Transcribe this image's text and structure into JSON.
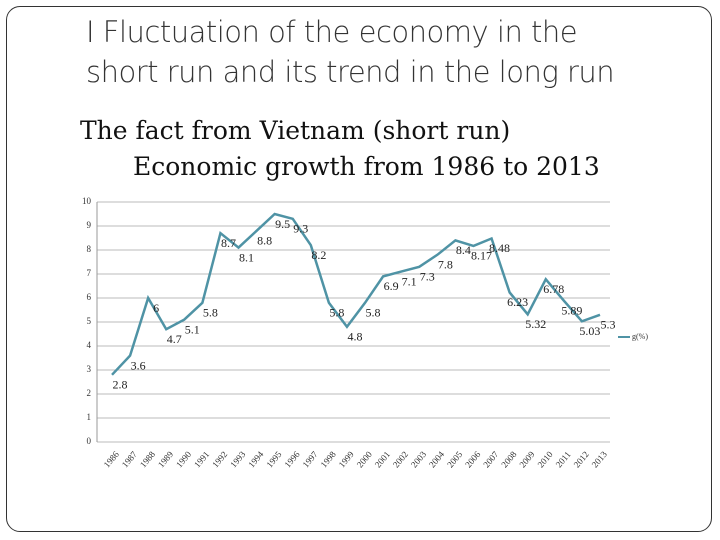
{
  "chart_data": {
    "type": "line",
    "title": "I Fluctuation of the economy in the short run and its trend in the long run",
    "subtitle": "The fact from Vietnam (short run)",
    "subtitle2": "Economic growth from 1986 to 2013",
    "categories": [
      "1986",
      "1987",
      "1988",
      "1989",
      "1990",
      "1991",
      "1992",
      "1993",
      "1994",
      "1995",
      "1996",
      "1997",
      "1998",
      "1999",
      "2000",
      "2001",
      "2002",
      "2003",
      "2004",
      "2005",
      "2006",
      "2007",
      "2008",
      "2009",
      "2010",
      "2011",
      "2012",
      "2013"
    ],
    "series": [
      {
        "name": "g(%)",
        "color": "#4f93a5",
        "values": [
          2.8,
          3.6,
          6,
          4.7,
          5.1,
          5.8,
          8.7,
          8.1,
          8.8,
          9.5,
          9.3,
          8.2,
          5.8,
          4.8,
          5.8,
          6.9,
          7.1,
          7.3,
          7.8,
          8.4,
          8.17,
          8.48,
          6.23,
          5.32,
          6.78,
          5.89,
          5.03,
          5.3
        ]
      }
    ],
    "ylim": [
      0,
      10
    ],
    "yticks": [
      0,
      1,
      2,
      3,
      4,
      5,
      6,
      7,
      8,
      9,
      10
    ],
    "grid": true,
    "legend": "right"
  }
}
